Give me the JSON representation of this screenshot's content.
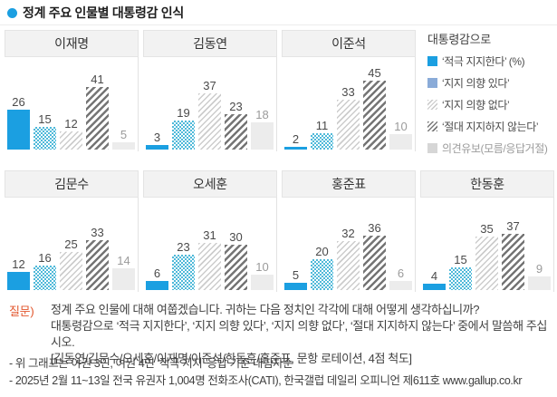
{
  "title": "정계 주요 인물별 대통령감 인식",
  "accent_colors": {
    "strong_support_blue": "#1b9fe1",
    "support_intent_blue": "#4fb9d9",
    "legend_intent_blue": "#8aabd8",
    "hatch_light_gray": "#cccccc",
    "hatch_dark_gray": "#757575",
    "reserved_gray": "#ececec",
    "question_label_orange": "#e2552b",
    "header_bg": "#f2f2f2"
  },
  "chart_data": {
    "type": "bar",
    "title": "정계 주요 인물별 대통령감 인식",
    "categories": [
      "‘적극 지지한다’ (%)",
      "‘지지 의향 있다’",
      "‘지지 의향 없다’",
      "‘절대 지지하지 않는다’",
      "의견유보(모름/응답거절)"
    ],
    "series": [
      {
        "name": "이재명",
        "values": [
          26,
          15,
          12,
          41,
          5
        ]
      },
      {
        "name": "김동연",
        "values": [
          3,
          19,
          37,
          23,
          18
        ]
      },
      {
        "name": "이준석",
        "values": [
          2,
          11,
          33,
          45,
          10
        ]
      },
      {
        "name": "김문수",
        "values": [
          12,
          16,
          25,
          33,
          14
        ]
      },
      {
        "name": "오세훈",
        "values": [
          6,
          23,
          31,
          30,
          10
        ]
      },
      {
        "name": "홍준표",
        "values": [
          5,
          20,
          32,
          36,
          6
        ]
      },
      {
        "name": "한동훈",
        "values": [
          4,
          15,
          35,
          37,
          9
        ]
      }
    ],
    "ylim": [
      0,
      50
    ],
    "grid": false,
    "legend_position": "right",
    "row_split": 3,
    "value_labels": true
  },
  "legend": {
    "header": "대통령감으로",
    "items": [
      {
        "label": "‘적극 지지한다’ (%)"
      },
      {
        "label": "‘지지 의향 있다’"
      },
      {
        "label": "‘지지 의향 없다’"
      },
      {
        "label": "‘절대 지지하지 않는다’"
      },
      {
        "label": "의견유보(모름/응답거절)"
      }
    ]
  },
  "question": {
    "label": "질문)",
    "lines": [
      "정계 주요 인물에 대해 여쭙겠습니다. 귀하는 다음 정치인 각각에 대해 어떻게 생각하십니까?",
      "대통령감으로 ‘적극 지지한다’, ‘지지 의향 있다’, ‘지지 의향 없다’, ‘절대 지지하지 않는다’ 중에서 말씀해 주십시오.",
      "[김동연/김문수/오세훈/이재명/이준석/한동훈/홍준표, 문항 로테이션, 4점 척도]"
    ]
  },
  "footnotes": [
    "- 위 그래프는 야권 3인, 여권 4인 ‘적극 지지’ 응답 기준 내림차순",
    "- 2025년 2월 11~13일 전국 유권자 1,004명 전화조사(CATI), 한국갤럽 데일리 오피니언 제611호 www.gallup.co.kr"
  ]
}
